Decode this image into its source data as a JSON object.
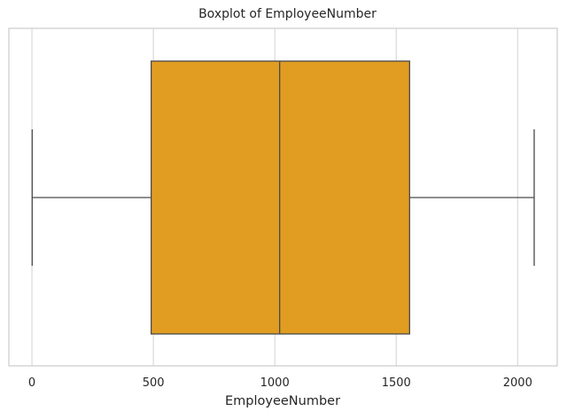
{
  "chart_data": {
    "type": "boxplot",
    "orientation": "horizontal",
    "title": "Boxplot of EmployeeNumber",
    "xlabel": "EmployeeNumber",
    "ylabel": "",
    "xlim": [
      -95,
      2163
    ],
    "xticks": [
      0,
      500,
      1000,
      1500,
      2000
    ],
    "xtick_labels": [
      "0",
      "500",
      "1000",
      "1500",
      "2000"
    ],
    "grid": true,
    "box": {
      "whisker_low": 1,
      "q1": 491,
      "median": 1020,
      "q3": 1555,
      "whisker_high": 2068
    },
    "colors": {
      "box_fill": "#e09d22",
      "line": "#4a4a4a",
      "grid": "#d6d6d6",
      "frame": "#cccccc"
    }
  }
}
